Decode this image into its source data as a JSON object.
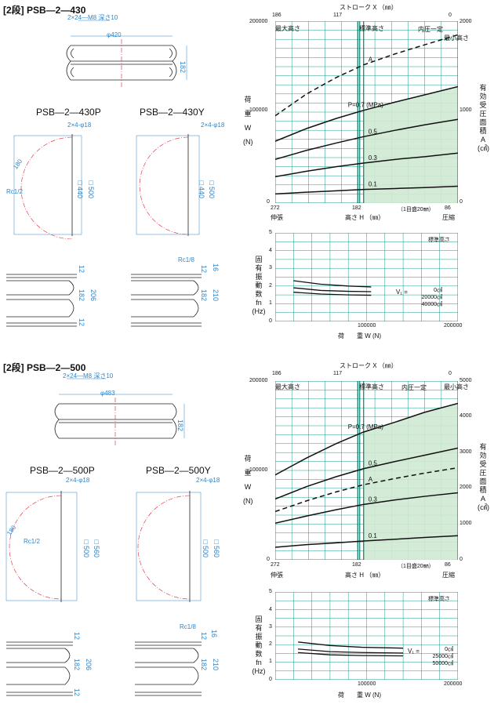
{
  "sections": [
    {
      "title": "[2段] PSB―2―430",
      "mount_note": "2×24―M8 深さ10",
      "diameter": "φ420",
      "height_dim": "182",
      "variants": [
        {
          "name": "PSB―2―430P",
          "holes": "2×4-φ18",
          "port": "Rc1/2",
          "radius": "180",
          "sq_inner": "□440",
          "sq_outer": "□500",
          "heights": [
            "12",
            "182",
            "206",
            "12"
          ]
        },
        {
          "name": "PSB―2―430Y",
          "holes": "2×4-φ18",
          "port": "Rc1/8",
          "sq_inner": "□440",
          "sq_outer": "□500",
          "heights": [
            "12",
            "182",
            "210",
            "16"
          ]
        }
      ],
      "load_chart": {
        "top_axis_title": "ストローク X （㎜）",
        "top_ticks": [
          "186",
          "117",
          "0"
        ],
        "y_left_ticks": [
          "200000",
          "100000",
          "0"
        ],
        "y_right_ticks": [
          "2000",
          "1000",
          "0"
        ],
        "x_bottom_ticks": [
          "272",
          "182",
          "86"
        ],
        "x_left_word": "伸張",
        "x_right_word": "圧縮",
        "x_title": "高さ H （㎜）",
        "x_note": "（1目盛20㎜）",
        "y_left_title": [
          "荷",
          "重",
          "W",
          "(N)"
        ],
        "y_right_title": [
          "有",
          "効",
          "受",
          "圧",
          "面",
          "積",
          "A",
          "(㎠)"
        ],
        "max_height_label": "最大高さ",
        "std_height_label": "標準高さ",
        "min_height_label": "最小高さ",
        "const_press_label": "内圧一定",
        "curve_labels": [
          "A",
          "P=0.7 (MPa)",
          "0.5",
          "0.3",
          "0.1"
        ]
      },
      "freq_chart": {
        "y_ticks": [
          "5",
          "4",
          "3",
          "2",
          "1",
          "0"
        ],
        "x_ticks": [
          "100000",
          "200000"
        ],
        "y_title": [
          "固",
          "有",
          "振",
          "動",
          "数",
          "fn",
          "(Hz)"
        ],
        "x_title": "荷　　重 W (N)",
        "std_label": "標準高さ",
        "v_label": "V₁ =",
        "volumes": [
          "0㎤",
          "20000㎤",
          "40000㎤"
        ]
      }
    },
    {
      "title": "[2段] PSB―2―500",
      "mount_note": "2×24―M8 深さ10",
      "diameter": "φ483",
      "height_dim": "182",
      "variants": [
        {
          "name": "PSB―2―500P",
          "holes": "2×4-φ18",
          "port": "Rc1/2",
          "radius": "180",
          "sq_inner": "□500",
          "sq_outer": "□560",
          "heights": [
            "12",
            "182",
            "206",
            "12"
          ]
        },
        {
          "name": "PSB―2―500Y",
          "holes": "2×4-φ18",
          "port": "Rc1/8",
          "sq_inner": "□500",
          "sq_outer": "□560",
          "heights": [
            "12",
            "182",
            "210",
            "16"
          ]
        }
      ],
      "load_chart": {
        "top_axis_title": "ストローク X （㎜）",
        "top_ticks": [
          "186",
          "117",
          "0"
        ],
        "y_left_ticks": [
          "200000",
          "100000",
          "0"
        ],
        "y_right_ticks": [
          "5000",
          "4000",
          "3000",
          "2000",
          "1000",
          "0"
        ],
        "x_bottom_ticks": [
          "272",
          "182",
          "86"
        ],
        "x_left_word": "伸張",
        "x_right_word": "圧縮",
        "x_title": "高さ H （㎜）",
        "x_note": "（1目盛20㎜）",
        "y_left_title": [
          "荷",
          "重",
          "W",
          "(N)"
        ],
        "y_right_title": [
          "有",
          "効",
          "受",
          "圧",
          "面",
          "積",
          "A",
          "(㎠)"
        ],
        "max_height_label": "最大高さ",
        "std_height_label": "標準高さ",
        "min_height_label": "最小高さ",
        "const_press_label": "内圧一定",
        "curve_labels": [
          "P=0.7 (MPa)",
          "0.5",
          "A",
          "0.3",
          "0.1"
        ]
      },
      "freq_chart": {
        "y_ticks": [
          "5",
          "4",
          "3",
          "2",
          "1",
          "0"
        ],
        "x_ticks": [
          "100000",
          "200000"
        ],
        "y_title": [
          "固",
          "有",
          "振",
          "動",
          "数",
          "fn",
          "(Hz)"
        ],
        "x_title": "荷　　重 W (N)",
        "std_label": "標準高さ",
        "v_label": "V₁ =",
        "volumes": [
          "0㎤",
          "25000㎤",
          "50000㎤"
        ]
      }
    }
  ],
  "chart_data": [
    {
      "type": "line",
      "xlabel": "高さ H （㎜）",
      "ylabel": "荷重 W (N)",
      "xlim": [
        272,
        86
      ],
      "ylim": [
        0,
        200000
      ],
      "y2lim": [
        0,
        2000
      ],
      "series": [
        {
          "name": "P=0.7 (MPa)",
          "x": [
            272,
            240,
            210,
            182,
            150,
            120,
            86
          ],
          "y": [
            68000,
            82000,
            93000,
            102000,
            111000,
            119000,
            128000
          ]
        },
        {
          "name": "0.5",
          "x": [
            272,
            240,
            210,
            182,
            150,
            120,
            86
          ],
          "y": [
            48000,
            58000,
            66000,
            73000,
            80000,
            86000,
            92000
          ]
        },
        {
          "name": "0.3",
          "x": [
            272,
            240,
            210,
            182,
            150,
            120,
            86
          ],
          "y": [
            29000,
            35000,
            40000,
            44000,
            48000,
            51000,
            55000
          ]
        },
        {
          "name": "0.1",
          "x": [
            272,
            240,
            210,
            182,
            150,
            120,
            86
          ],
          "y": [
            10000,
            12000,
            13500,
            15000,
            16000,
            17000,
            18500
          ]
        },
        {
          "name": "A",
          "x": [
            272,
            240,
            210,
            182,
            150,
            120,
            86
          ],
          "y": [
            96000,
            120000,
            138000,
            152000,
            164000,
            174000,
            185000
          ],
          "axis": "right_scaled"
        }
      ]
    },
    {
      "type": "line",
      "xlabel": "荷　　重 W (N)",
      "ylabel": "fn (Hz)",
      "xlim": [
        0,
        200000
      ],
      "ylim": [
        0,
        5
      ],
      "series": [
        {
          "name": "0㎤",
          "x": [
            20000,
            50000,
            80000,
            105000
          ],
          "y": [
            2.3,
            2.1,
            2.0,
            1.95
          ]
        },
        {
          "name": "20000㎤",
          "x": [
            20000,
            50000,
            80000,
            105000
          ],
          "y": [
            1.9,
            1.75,
            1.7,
            1.68
          ]
        },
        {
          "name": "40000㎤",
          "x": [
            20000,
            50000,
            80000,
            105000
          ],
          "y": [
            1.65,
            1.55,
            1.5,
            1.48
          ]
        }
      ]
    },
    {
      "type": "line",
      "xlabel": "高さ H （㎜）",
      "ylabel": "荷重 W (N)",
      "xlim": [
        272,
        86
      ],
      "ylim": [
        0,
        200000
      ],
      "y2lim": [
        0,
        5000
      ],
      "series": [
        {
          "name": "P=0.7 (MPa)",
          "x": [
            272,
            240,
            210,
            182,
            150,
            120,
            86
          ],
          "y": [
            95000,
            114000,
            130000,
            143000,
            154000,
            165000,
            175000
          ]
        },
        {
          "name": "0.5",
          "x": [
            272,
            240,
            210,
            182,
            150,
            120,
            86
          ],
          "y": [
            68000,
            82000,
            93000,
            102000,
            110000,
            117000,
            125000
          ]
        },
        {
          "name": "0.3",
          "x": [
            272,
            240,
            210,
            182,
            150,
            120,
            86
          ],
          "y": [
            41000,
            49000,
            56000,
            62000,
            67000,
            71000,
            75000
          ]
        },
        {
          "name": "0.1",
          "x": [
            272,
            240,
            210,
            182,
            150,
            120,
            86
          ],
          "y": [
            14000,
            17000,
            19000,
            21000,
            23000,
            25000,
            27000
          ]
        },
        {
          "name": "A",
          "x": [
            272,
            240,
            210,
            182,
            150,
            120,
            86
          ],
          "y": [
            54000,
            66000,
            76000,
            84000,
            91000,
            97000,
            103000
          ],
          "axis": "right_scaled"
        }
      ]
    },
    {
      "type": "line",
      "xlabel": "荷　　重 W (N)",
      "ylabel": "fn (Hz)",
      "xlim": [
        0,
        200000
      ],
      "ylim": [
        0,
        5
      ],
      "series": [
        {
          "name": "0㎤",
          "x": [
            25000,
            60000,
            95000,
            140000
          ],
          "y": [
            2.15,
            1.95,
            1.85,
            1.8
          ]
        },
        {
          "name": "25000㎤",
          "x": [
            25000,
            60000,
            95000,
            140000
          ],
          "y": [
            1.75,
            1.6,
            1.55,
            1.52
          ]
        },
        {
          "name": "50000㎤",
          "x": [
            25000,
            60000,
            95000,
            140000
          ],
          "y": [
            1.55,
            1.42,
            1.38,
            1.36
          ]
        }
      ]
    }
  ]
}
